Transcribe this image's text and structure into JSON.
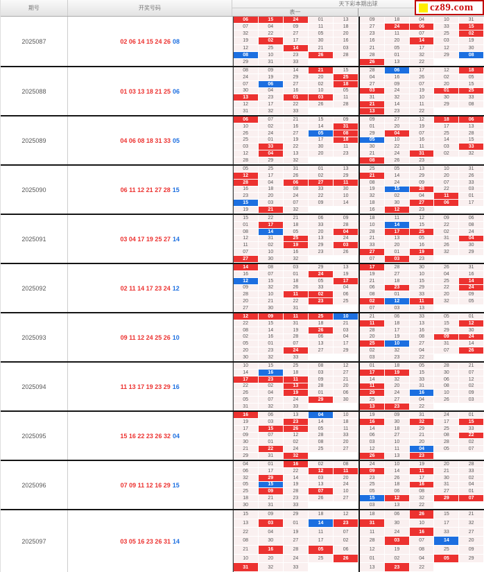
{
  "header": {
    "col_period": "期号",
    "col_numbers": "开奖号码",
    "right_title": "天下彩本期出球",
    "sub_left": "表一",
    "sub_right": "表二"
  },
  "logo": {
    "text": "cz89.com"
  },
  "colors": {
    "red": "#ec3230",
    "blue": "#1c6fe0"
  },
  "periods": [
    {
      "id": "2025087",
      "red_numbers": "02 06 14 15 24 26",
      "blue_number": "08",
      "grid_a": [
        [
          "06R",
          "15R",
          "24R",
          "01",
          "13"
        ],
        [
          "07",
          "04",
          "09",
          "11",
          "18"
        ],
        [
          "32",
          "22",
          "27",
          "05",
          "20"
        ],
        [
          "19",
          "02R",
          "17",
          "30",
          "16"
        ],
        [
          "12",
          "25",
          "14R",
          "21",
          "03"
        ],
        [
          "08B",
          "10",
          "23",
          "26R",
          "28"
        ],
        [
          "29",
          "31",
          "33",
          "",
          ""
        ]
      ],
      "grid_b": [
        [
          "09",
          "18",
          "04",
          "10",
          "31"
        ],
        [
          "27",
          "24R",
          "06R",
          "33",
          "15R"
        ],
        [
          "23",
          "11",
          "07",
          "25",
          "02R"
        ],
        [
          "16",
          "20",
          "14R",
          "03",
          "19"
        ],
        [
          "21",
          "05",
          "17",
          "12",
          "30"
        ],
        [
          "28",
          "01",
          "32",
          "29",
          "08B"
        ],
        [
          "26R",
          "13",
          "22",
          "",
          ""
        ]
      ]
    },
    {
      "id": "2025088",
      "red_numbers": "01 03 13 18 21 25",
      "blue_number": "06",
      "grid_a": [
        [
          "08",
          "09",
          "14",
          "21R",
          "15"
        ],
        [
          "24",
          "19",
          "29",
          "20",
          "25R"
        ],
        [
          "07",
          "06B",
          "27",
          "02",
          "18R"
        ],
        [
          "30",
          "04",
          "16",
          "10",
          "05"
        ],
        [
          "13R",
          "23",
          "01R",
          "03R",
          "11"
        ],
        [
          "12",
          "17",
          "22",
          "26",
          "28"
        ],
        [
          "31",
          "32",
          "33",
          "",
          ""
        ]
      ],
      "grid_b": [
        [
          "28",
          "06B",
          "17",
          "12",
          "18R"
        ],
        [
          "04",
          "16",
          "26",
          "02",
          "05"
        ],
        [
          "27",
          "09",
          "07",
          "20",
          "15"
        ],
        [
          "03R",
          "24",
          "19",
          "01R",
          "25R"
        ],
        [
          "31",
          "32",
          "10",
          "30",
          "33"
        ],
        [
          "21R",
          "14",
          "11",
          "29",
          "08"
        ],
        [
          "13R",
          "23",
          "22",
          "",
          ""
        ]
      ]
    },
    {
      "id": "2025089",
      "red_numbers": "04 06 08 18 31 33",
      "blue_number": "05",
      "grid_a": [
        [
          "06R",
          "07",
          "21",
          "15",
          "09"
        ],
        [
          "10",
          "02",
          "16",
          "14",
          "31R"
        ],
        [
          "26",
          "24",
          "27",
          "05B",
          "08R"
        ],
        [
          "25",
          "01",
          "19",
          "17",
          "18R"
        ],
        [
          "03",
          "33R",
          "22",
          "30",
          "11"
        ],
        [
          "12",
          "04R",
          "13",
          "20",
          "23"
        ],
        [
          "28",
          "29",
          "32",
          "",
          ""
        ]
      ],
      "grid_b": [
        [
          "09",
          "27",
          "12",
          "18R",
          "06R"
        ],
        [
          "01",
          "20",
          "19",
          "17",
          "13"
        ],
        [
          "29",
          "04R",
          "07",
          "25",
          "28"
        ],
        [
          "05B",
          "10",
          "16",
          "14",
          "15"
        ],
        [
          "30",
          "22",
          "11",
          "03",
          "33R"
        ],
        [
          "21",
          "24",
          "31R",
          "02",
          "32"
        ],
        [
          "08R",
          "26",
          "23",
          "",
          ""
        ]
      ]
    },
    {
      "id": "2025090",
      "red_numbers": "06 11 12 21 27 28",
      "blue_number": "15",
      "grid_a": [
        [
          "05",
          "25",
          "31",
          "01",
          "13"
        ],
        [
          "12R",
          "17",
          "26",
          "02",
          "29"
        ],
        [
          "28R",
          "04",
          "06R",
          "27R",
          "11R"
        ],
        [
          "16",
          "18",
          "08",
          "33",
          "30"
        ],
        [
          "23",
          "20",
          "24",
          "22",
          "10"
        ],
        [
          "15B",
          "03",
          "07",
          "09",
          "14"
        ],
        [
          "19",
          "21R",
          "32",
          "",
          ""
        ]
      ],
      "grid_b": [
        [
          "25",
          "05",
          "13",
          "10",
          "31"
        ],
        [
          "21R",
          "14",
          "29",
          "20",
          "26"
        ],
        [
          "08",
          "24",
          "09",
          "07",
          "33"
        ],
        [
          "19",
          "15B",
          "28R",
          "22",
          "03"
        ],
        [
          "32",
          "02",
          "04",
          "11R",
          "01"
        ],
        [
          "18",
          "30",
          "27R",
          "06R",
          "17"
        ],
        [
          "16",
          "12R",
          "23",
          "",
          ""
        ]
      ]
    },
    {
      "id": "2025091",
      "red_numbers": "03 04 17 19 25 27",
      "blue_number": "14",
      "grid_a": [
        [
          "15",
          "22",
          "21",
          "06",
          "09"
        ],
        [
          "01",
          "17R",
          "18",
          "33",
          "28"
        ],
        [
          "08",
          "14B",
          "05",
          "20",
          "04R"
        ],
        [
          "12",
          "31",
          "25R",
          "13",
          "24"
        ],
        [
          "11",
          "02",
          "19R",
          "29",
          "03R"
        ],
        [
          "07",
          "10",
          "16",
          "23",
          "26"
        ],
        [
          "27R",
          "30",
          "32",
          "",
          ""
        ]
      ],
      "grid_b": [
        [
          "18",
          "11",
          "12",
          "09",
          "06"
        ],
        [
          "10",
          "14B",
          "15",
          "22",
          "08"
        ],
        [
          "28",
          "17R",
          "25R",
          "02",
          "24"
        ],
        [
          "21",
          "13",
          "05",
          "31",
          "04R"
        ],
        [
          "33",
          "20",
          "16",
          "26",
          "30"
        ],
        [
          "27R",
          "01",
          "19R",
          "32",
          "29"
        ],
        [
          "07",
          "03R",
          "23",
          "",
          ""
        ]
      ]
    },
    {
      "id": "2025092",
      "red_numbers": "02 11 14 17 23 24",
      "blue_number": "12",
      "grid_a": [
        [
          "14R",
          "08",
          "03",
          "29",
          "13"
        ],
        [
          "16",
          "07",
          "01",
          "24R",
          "19"
        ],
        [
          "12B",
          "15",
          "18",
          "05",
          "17R"
        ],
        [
          "09",
          "32",
          "26",
          "33",
          "04"
        ],
        [
          "28",
          "10",
          "11R",
          "02R",
          "06"
        ],
        [
          "20",
          "21",
          "22",
          "23R",
          "25"
        ],
        [
          "27",
          "30",
          "31",
          "",
          ""
        ]
      ],
      "grid_b": [
        [
          "17R",
          "28",
          "30",
          "26",
          "31"
        ],
        [
          "19",
          "27",
          "10",
          "04",
          "16"
        ],
        [
          "21",
          "18",
          "15",
          "25",
          "14R"
        ],
        [
          "06",
          "23R",
          "29",
          "22",
          "24R"
        ],
        [
          "08",
          "01",
          "33",
          "20",
          "09"
        ],
        [
          "02R",
          "12B",
          "11R",
          "32",
          "05"
        ],
        [
          "07",
          "03",
          "13",
          "",
          ""
        ]
      ]
    },
    {
      "id": "2025093",
      "red_numbers": "09 11 12 24 25 26",
      "blue_number": "10",
      "grid_a": [
        [
          "12R",
          "09R",
          "11R",
          "25R",
          "10B"
        ],
        [
          "22",
          "15",
          "31",
          "18",
          "21"
        ],
        [
          "08",
          "14",
          "19",
          "26R",
          "03"
        ],
        [
          "02",
          "16",
          "28",
          "06",
          "04"
        ],
        [
          "05",
          "01",
          "07",
          "13",
          "17"
        ],
        [
          "20",
          "23",
          "24R",
          "27",
          "29"
        ],
        [
          "30",
          "32",
          "33",
          "",
          ""
        ]
      ],
      "grid_b": [
        [
          "21",
          "06",
          "33",
          "05",
          "01"
        ],
        [
          "11R",
          "18",
          "13",
          "15",
          "12R"
        ],
        [
          "28",
          "17",
          "16",
          "29",
          "30"
        ],
        [
          "20",
          "19",
          "08",
          "09R",
          "24R"
        ],
        [
          "25R",
          "10B",
          "27",
          "31",
          "14"
        ],
        [
          "02",
          "32",
          "04",
          "07",
          "26R"
        ],
        [
          "03",
          "23",
          "22",
          "",
          ""
        ]
      ]
    },
    {
      "id": "2025094",
      "red_numbers": "11 13 17 19 23 29",
      "blue_number": "16",
      "grid_a": [
        [
          "10",
          "15",
          "25",
          "08",
          "12"
        ],
        [
          "14",
          "16B",
          "18",
          "03",
          "27"
        ],
        [
          "17R",
          "23R",
          "11R",
          "09",
          "21"
        ],
        [
          "22",
          "02",
          "13R",
          "28",
          "20"
        ],
        [
          "26",
          "04",
          "19R",
          "01",
          "06"
        ],
        [
          "05",
          "07",
          "24",
          "29R",
          "30"
        ],
        [
          "31",
          "32",
          "33",
          "",
          ""
        ]
      ],
      "grid_b": [
        [
          "01",
          "18",
          "05",
          "28",
          "21"
        ],
        [
          "17R",
          "19R",
          "15",
          "30",
          "07"
        ],
        [
          "14",
          "32",
          "33",
          "06",
          "12"
        ],
        [
          "11R",
          "20",
          "31",
          "08",
          "02"
        ],
        [
          "29R",
          "24",
          "16B",
          "10",
          "09"
        ],
        [
          "25",
          "27",
          "04",
          "26",
          "03"
        ],
        [
          "13R",
          "23R",
          "22",
          "",
          ""
        ]
      ]
    },
    {
      "id": "2025095",
      "red_numbers": "15 16 22 23 26 32",
      "blue_number": "04",
      "grid_a": [
        [
          "16R",
          "06",
          "13",
          "04B",
          "10"
        ],
        [
          "19",
          "03",
          "23R",
          "14",
          "18"
        ],
        [
          "17",
          "15R",
          "26R",
          "05",
          "11"
        ],
        [
          "09",
          "07",
          "12",
          "28",
          "33"
        ],
        [
          "30",
          "01",
          "02",
          "08",
          "20"
        ],
        [
          "21",
          "22R",
          "24",
          "25",
          "27"
        ],
        [
          "29",
          "31",
          "32R",
          "",
          ""
        ]
      ],
      "grid_b": [
        [
          "19",
          "09",
          "31",
          "24",
          "01"
        ],
        [
          "16R",
          "30",
          "32R",
          "17",
          "15R"
        ],
        [
          "14",
          "18",
          "29",
          "25",
          "33"
        ],
        [
          "06",
          "27",
          "21",
          "08",
          "22R"
        ],
        [
          "03",
          "10",
          "20",
          "28",
          "02"
        ],
        [
          "12",
          "11",
          "04B",
          "05",
          "07"
        ],
        [
          "26R",
          "13",
          "23R",
          "",
          ""
        ]
      ]
    },
    {
      "id": "2025096",
      "red_numbers": "07 09 11 12 16 29",
      "blue_number": "15",
      "grid_a": [
        [
          "04",
          "01",
          "16R",
          "02",
          "08"
        ],
        [
          "06",
          "17",
          "22",
          "12R",
          "11R"
        ],
        [
          "32",
          "29R",
          "14",
          "03",
          "20"
        ],
        [
          "05",
          "15B",
          "19",
          "13",
          "24"
        ],
        [
          "25",
          "09R",
          "28",
          "07R",
          "10"
        ],
        [
          "18",
          "21",
          "23",
          "26",
          "27"
        ],
        [
          "30",
          "31",
          "33",
          "",
          ""
        ]
      ],
      "grid_b": [
        [
          "24",
          "10",
          "19",
          "20",
          "28"
        ],
        [
          "09R",
          "14",
          "11R",
          "21",
          "33"
        ],
        [
          "23",
          "26",
          "17",
          "30",
          "02"
        ],
        [
          "25",
          "18",
          "16R",
          "31",
          "04"
        ],
        [
          "05",
          "06",
          "08",
          "27",
          "01"
        ],
        [
          "15B",
          "12R",
          "32",
          "29R",
          "07R"
        ],
        [
          "03",
          "13",
          "22",
          "",
          ""
        ]
      ]
    },
    {
      "id": "2025097",
      "red_numbers": "03 05 16 23 26 31",
      "blue_number": "14",
      "grid_a": [
        [
          "15",
          "09",
          "29",
          "18",
          "12"
        ],
        [
          "13",
          "03R",
          "01",
          "14B",
          "23R"
        ],
        [
          "22",
          "04",
          "19",
          "11",
          "07"
        ],
        [
          "08",
          "30",
          "27",
          "17",
          "02"
        ],
        [
          "21",
          "16R",
          "28",
          "05R",
          "06"
        ],
        [
          "10",
          "20",
          "24",
          "25",
          "26R"
        ],
        [
          "31R",
          "32",
          "33",
          "",
          ""
        ]
      ],
      "grid_b": [
        [
          "18",
          "06",
          "26R",
          "15",
          "21"
        ],
        [
          "31R",
          "30",
          "10",
          "17",
          "32"
        ],
        [
          "11",
          "24",
          "16R",
          "33",
          "27"
        ],
        [
          "28",
          "03R",
          "07",
          "14B",
          "20"
        ],
        [
          "12",
          "19",
          "08",
          "25",
          "09"
        ],
        [
          "01",
          "02",
          "04",
          "05R",
          "29"
        ],
        [
          "13",
          "23R",
          "22",
          "",
          ""
        ]
      ]
    }
  ]
}
